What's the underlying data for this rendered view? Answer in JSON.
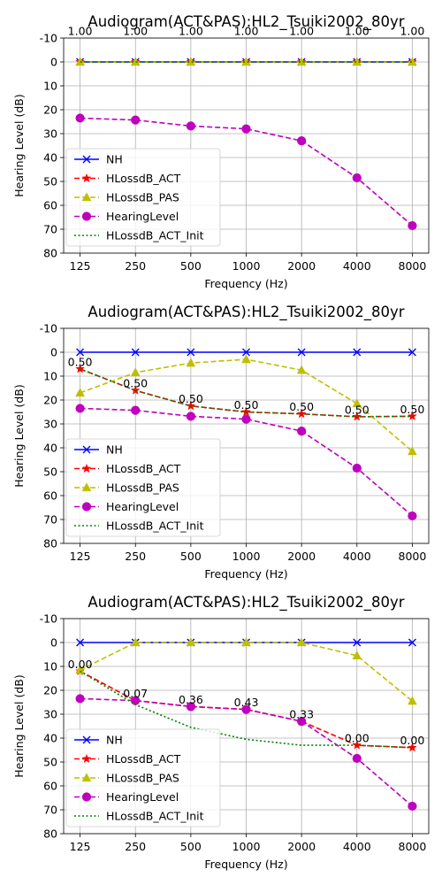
{
  "chart_data": [
    {
      "type": "line",
      "title": "Audiogram(ACT&PAS):HL2_Tsuiki2002_80yr",
      "xlabel": "Frequency (Hz)",
      "ylabel": "Hearing Level (dB)",
      "categories": [
        "125",
        "250",
        "500",
        "1000",
        "2000",
        "4000",
        "8000"
      ],
      "ylim": [
        80,
        -10
      ],
      "yticks": [
        "-10",
        "0",
        "10",
        "20",
        "30",
        "40",
        "50",
        "60",
        "70",
        "80"
      ],
      "grid": true,
      "legend_position": "lower-left",
      "series": [
        {
          "name": "NH",
          "values": [
            0,
            0,
            0,
            0,
            0,
            0,
            0
          ],
          "color": "#0000ff",
          "dash": "solid",
          "marker": "x"
        },
        {
          "name": "HLossdB_ACT",
          "values": [
            0,
            0,
            0,
            0,
            0,
            0,
            0
          ],
          "color": "#ff0000",
          "dash": "dashed",
          "marker": "star"
        },
        {
          "name": "HLossdB_PAS",
          "values": [
            0,
            0,
            0,
            0,
            0,
            0,
            0
          ],
          "color": "#bfbf00",
          "dash": "dashed",
          "marker": "triangle"
        },
        {
          "name": "HearingLevel",
          "values": [
            23.5,
            24.3,
            26.8,
            28,
            33,
            48.5,
            68.5
          ],
          "color": "#bf00bf",
          "dash": "dashed",
          "marker": "circle"
        },
        {
          "name": "HLossdB_ACT_Init",
          "values": [
            0,
            0,
            0,
            0,
            0,
            0,
            0
          ],
          "color": "#008000",
          "dash": "dotted",
          "marker": "none"
        }
      ],
      "annotations": [
        {
          "text": "1.00",
          "x": 0,
          "y": -13
        },
        {
          "text": "1.00",
          "x": 1,
          "y": -13
        },
        {
          "text": "1.00",
          "x": 2,
          "y": -13
        },
        {
          "text": "1.00",
          "x": 3,
          "y": -13
        },
        {
          "text": "1.00",
          "x": 4,
          "y": -13
        },
        {
          "text": "1.00",
          "x": 5,
          "y": -13
        },
        {
          "text": "1.00",
          "x": 6,
          "y": -13
        }
      ]
    },
    {
      "type": "line",
      "title": "Audiogram(ACT&PAS):HL2_Tsuiki2002_80yr",
      "xlabel": "Frequency (Hz)",
      "ylabel": "Hearing Level (dB)",
      "categories": [
        "125",
        "250",
        "500",
        "1000",
        "2000",
        "4000",
        "8000"
      ],
      "ylim": [
        80,
        -10
      ],
      "yticks": [
        "-10",
        "0",
        "10",
        "20",
        "30",
        "40",
        "50",
        "60",
        "70",
        "80"
      ],
      "grid": true,
      "legend_position": "lower-left",
      "series": [
        {
          "name": "NH",
          "values": [
            0,
            0,
            0,
            0,
            0,
            0,
            0
          ],
          "color": "#0000ff",
          "dash": "solid",
          "marker": "x"
        },
        {
          "name": "HLossdB_ACT",
          "values": [
            7,
            16,
            22.5,
            25,
            25.8,
            27,
            26.8
          ],
          "color": "#ff0000",
          "dash": "dashed",
          "marker": "star"
        },
        {
          "name": "HLossdB_PAS",
          "values": [
            17,
            8.5,
            4.5,
            3,
            7.5,
            21.5,
            41.5
          ],
          "color": "#bfbf00",
          "dash": "dashed",
          "marker": "triangle"
        },
        {
          "name": "HearingLevel",
          "values": [
            23.5,
            24.3,
            26.8,
            28,
            33,
            48.5,
            68.5
          ],
          "color": "#bf00bf",
          "dash": "dashed",
          "marker": "circle"
        },
        {
          "name": "HLossdB_ACT_Init",
          "values": [
            7,
            16,
            22.5,
            25,
            25.8,
            27,
            26.8
          ],
          "color": "#008000",
          "dash": "dotted",
          "marker": "none"
        }
      ],
      "annotations": [
        {
          "text": "0.50",
          "x": 0,
          "y": 4
        },
        {
          "text": "0.50",
          "x": 1,
          "y": 13
        },
        {
          "text": "0.50",
          "x": 2,
          "y": 19.5
        },
        {
          "text": "0.50",
          "x": 3,
          "y": 22
        },
        {
          "text": "0.50",
          "x": 4,
          "y": 22.8
        },
        {
          "text": "0.50",
          "x": 5,
          "y": 24
        },
        {
          "text": "0.50",
          "x": 6,
          "y": 23.8
        }
      ]
    },
    {
      "type": "line",
      "title": "Audiogram(ACT&PAS):HL2_Tsuiki2002_80yr",
      "xlabel": "Frequency (Hz)",
      "ylabel": "Hearing Level (dB)",
      "categories": [
        "125",
        "250",
        "500",
        "1000",
        "2000",
        "4000",
        "8000"
      ],
      "ylim": [
        80,
        -10
      ],
      "yticks": [
        "-10",
        "0",
        "10",
        "20",
        "30",
        "40",
        "50",
        "60",
        "70",
        "80"
      ],
      "grid": true,
      "legend_position": "lower-left",
      "series": [
        {
          "name": "NH",
          "values": [
            0,
            0,
            0,
            0,
            0,
            0,
            0
          ],
          "color": "#0000ff",
          "dash": "solid",
          "marker": "x"
        },
        {
          "name": "HLossdB_ACT",
          "values": [
            12,
            24.3,
            26.8,
            28,
            33,
            43,
            44
          ],
          "color": "#ff0000",
          "dash": "dashed",
          "marker": "star"
        },
        {
          "name": "HLossdB_PAS",
          "values": [
            11.5,
            0,
            0,
            0,
            0,
            5.5,
            24.5
          ],
          "color": "#bfbf00",
          "dash": "dashed",
          "marker": "triangle"
        },
        {
          "name": "HearingLevel",
          "values": [
            23.5,
            24.3,
            26.8,
            28,
            33,
            48.5,
            68.5
          ],
          "color": "#bf00bf",
          "dash": "dashed",
          "marker": "circle"
        },
        {
          "name": "HLossdB_ACT_Init",
          "values": [
            12,
            26,
            35.5,
            40.5,
            43,
            43,
            44
          ],
          "color": "#008000",
          "dash": "dotted",
          "marker": "none"
        }
      ],
      "annotations": [
        {
          "text": "0.00",
          "x": 0,
          "y": 9
        },
        {
          "text": "0.07",
          "x": 1,
          "y": 21.3
        },
        {
          "text": "0.36",
          "x": 2,
          "y": 23.8
        },
        {
          "text": "0.43",
          "x": 3,
          "y": 25
        },
        {
          "text": "0.33",
          "x": 4,
          "y": 30
        },
        {
          "text": "0.00",
          "x": 5,
          "y": 40
        },
        {
          "text": "0.00",
          "x": 6,
          "y": 41
        }
      ]
    }
  ]
}
